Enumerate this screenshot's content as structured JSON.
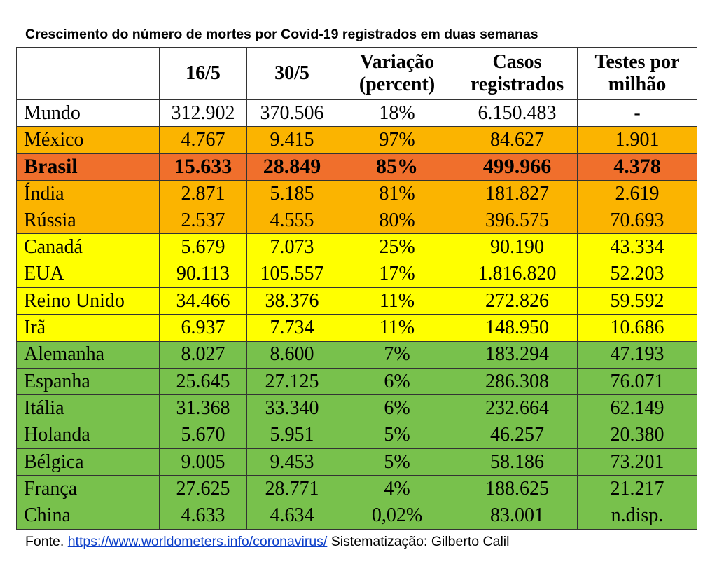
{
  "title": "Crescimento do número de mortes por Covid-19 registrados em duas semanas",
  "headers": [
    "",
    "16/5",
    "30/5",
    "Variação (percent)",
    "Casos registrados",
    "Testes por milhão"
  ],
  "colors": {
    "white": "#ffffff",
    "orange": "#fbb400",
    "dark_orange": "#f06f2c",
    "yellow": "#ffff00",
    "green": "#78c14c"
  },
  "rows": [
    {
      "country": "Mundo",
      "d16": "312.902",
      "d30": "370.506",
      "var": "18%",
      "cases": "6.150.483",
      "tests": "-",
      "color": "#ffffff",
      "bold": false
    },
    {
      "country": "México",
      "d16": "4.767",
      "d30": "9.415",
      "var": "97%",
      "cases": "84.627",
      "tests": "1.901",
      "color": "#fbb400",
      "bold": false
    },
    {
      "country": "Brasil",
      "d16": "15.633",
      "d30": "28.849",
      "var": "85%",
      "cases": "499.966",
      "tests": "4.378",
      "color": "#f06f2c",
      "bold": true
    },
    {
      "country": "Índia",
      "d16": "2.871",
      "d30": "5.185",
      "var": "81%",
      "cases": "181.827",
      "tests": "2.619",
      "color": "#fbb400",
      "bold": false
    },
    {
      "country": "Rússia",
      "d16": "2.537",
      "d30": "4.555",
      "var": "80%",
      "cases": "396.575",
      "tests": "70.693",
      "color": "#fbb400",
      "bold": false
    },
    {
      "country": "Canadá",
      "d16": "5.679",
      "d30": "7.073",
      "var": "25%",
      "cases": "90.190",
      "tests": "43.334",
      "color": "#ffff00",
      "bold": false
    },
    {
      "country": "EUA",
      "d16": "90.113",
      "d30": "105.557",
      "var": "17%",
      "cases": "1.816.820",
      "tests": "52.203",
      "color": "#ffff00",
      "bold": false
    },
    {
      "country": "Reino Unido",
      "d16": "34.466",
      "d30": "38.376",
      "var": "11%",
      "cases": "272.826",
      "tests": "59.592",
      "color": "#ffff00",
      "bold": false
    },
    {
      "country": "Irã",
      "d16": "6.937",
      "d30": "7.734",
      "var": "11%",
      "cases": "148.950",
      "tests": "10.686",
      "color": "#ffff00",
      "bold": false
    },
    {
      "country": "Alemanha",
      "d16": "8.027",
      "d30": "8.600",
      "var": "7%",
      "cases": "183.294",
      "tests": "47.193",
      "color": "#78c14c",
      "bold": false
    },
    {
      "country": "Espanha",
      "d16": "25.645",
      "d30": "27.125",
      "var": "6%",
      "cases": "286.308",
      "tests": "76.071",
      "color": "#78c14c",
      "bold": false
    },
    {
      "country": "Itália",
      "d16": "31.368",
      "d30": "33.340",
      "var": "6%",
      "cases": "232.664",
      "tests": "62.149",
      "color": "#78c14c",
      "bold": false
    },
    {
      "country": "Holanda",
      "d16": "5.670",
      "d30": "5.951",
      "var": "5%",
      "cases": "46.257",
      "tests": "20.380",
      "color": "#78c14c",
      "bold": false
    },
    {
      "country": "Bélgica",
      "d16": "9.005",
      "d30": "9.453",
      "var": "5%",
      "cases": "58.186",
      "tests": "73.201",
      "color": "#78c14c",
      "bold": false
    },
    {
      "country": "França",
      "d16": "27.625",
      "d30": "28.771",
      "var": "4%",
      "cases": "188.625",
      "tests": "21.217",
      "color": "#78c14c",
      "bold": false
    },
    {
      "country": "China",
      "d16": "4.633",
      "d30": "4.634",
      "var": "0,02%",
      "cases": "83.001",
      "tests": "n.disp.",
      "color": "#78c14c",
      "bold": false
    }
  ],
  "footer": {
    "prefix": "Fonte. ",
    "link_text": "https://www.worldometers.info/coronavirus/",
    "suffix": " Sistematização: Gilberto Calil"
  }
}
